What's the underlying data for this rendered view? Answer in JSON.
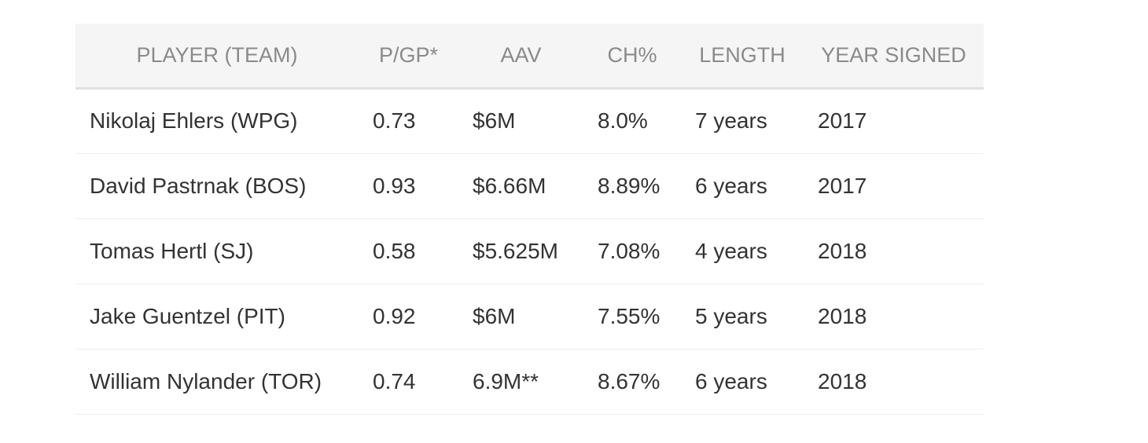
{
  "table": {
    "headers": [
      "PLAYER (TEAM)",
      "P/GP*",
      "AAV",
      "CH%",
      "LENGTH",
      "YEAR SIGNED"
    ],
    "rows": [
      [
        "Nikolaj Ehlers (WPG)",
        "0.73",
        "$6M",
        "8.0%",
        "7 years",
        "2017"
      ],
      [
        "David Pastrnak (BOS)",
        "0.93",
        "$6.66M",
        "8.89%",
        "6 years",
        "2017"
      ],
      [
        "Tomas Hertl (SJ)",
        "0.58",
        "$5.625M",
        "7.08%",
        "4 years",
        "2018"
      ],
      [
        "Jake Guentzel (PIT)",
        "0.92",
        "$6M",
        "7.55%",
        "5 years",
        "2018"
      ],
      [
        "William Nylander (TOR)",
        "0.74",
        "6.9M**",
        "8.67%",
        "6 years",
        "2018"
      ]
    ]
  }
}
